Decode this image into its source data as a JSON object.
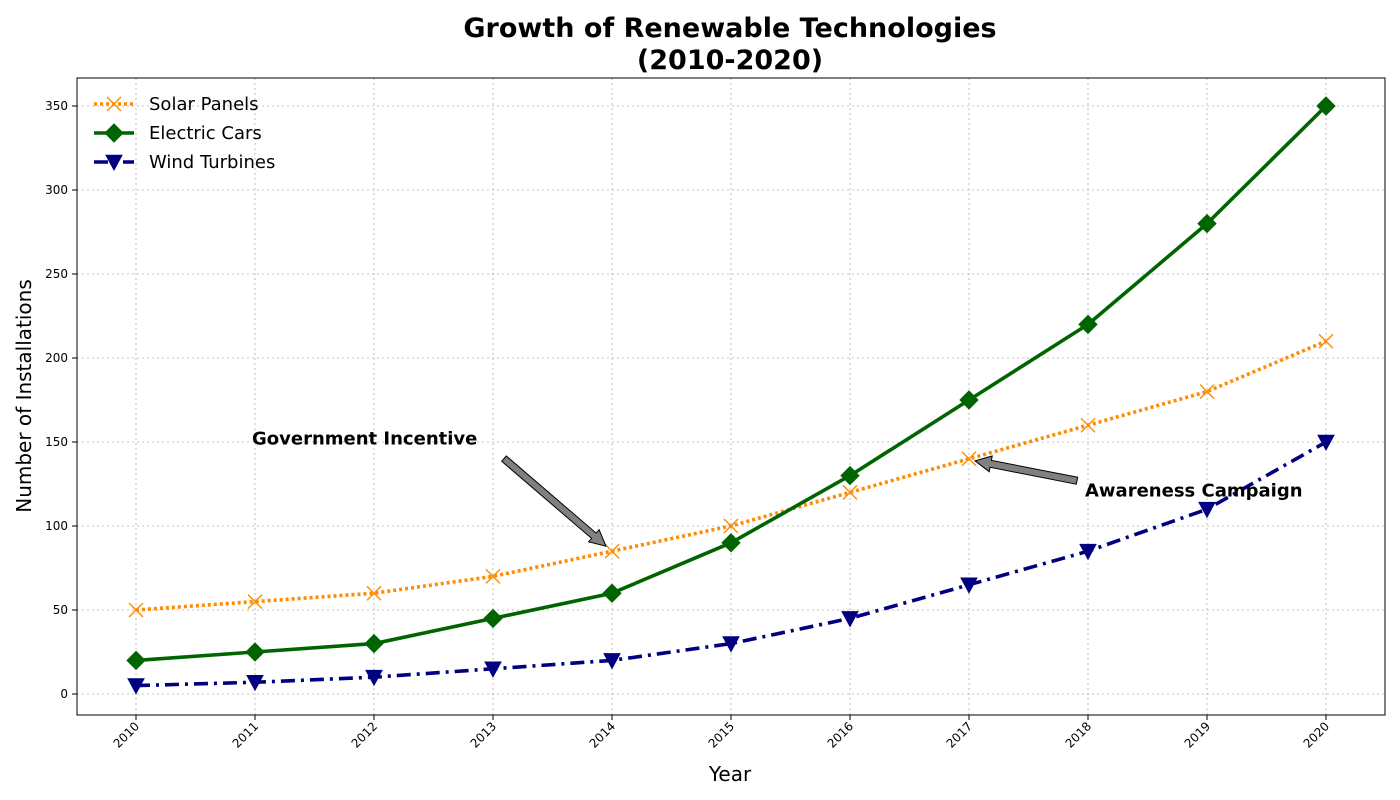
{
  "chart_data": {
    "type": "line",
    "title_lines": [
      "Growth of Renewable Technologies",
      "(2010-2020)"
    ],
    "xlabel": "Year",
    "ylabel": "Number of Installations",
    "x": [
      "2010",
      "2011",
      "2012",
      "2013",
      "2014",
      "2015",
      "2016",
      "2017",
      "2018",
      "2019",
      "2020"
    ],
    "ylim": [
      -12,
      367
    ],
    "yticks": [
      0,
      50,
      100,
      150,
      200,
      250,
      300,
      350
    ],
    "grid": true,
    "legend_position": "top-left",
    "series": [
      {
        "name": "Solar Panels",
        "values": [
          50,
          55,
          60,
          70,
          85,
          100,
          120,
          140,
          160,
          180,
          210
        ],
        "color": "#ff8c00",
        "line_style": "dotted",
        "marker": "x"
      },
      {
        "name": "Electric Cars",
        "values": [
          20,
          25,
          30,
          45,
          60,
          90,
          130,
          175,
          220,
          280,
          350
        ],
        "color": "#006400",
        "line_style": "solid",
        "marker": "diamond"
      },
      {
        "name": "Wind Turbines",
        "values": [
          5,
          7,
          10,
          15,
          20,
          30,
          45,
          65,
          85,
          110,
          150
        ],
        "color": "#000080",
        "line_style": "dashdot",
        "marker": "triangle-down"
      }
    ],
    "annotations": [
      {
        "text": "Government Incentive",
        "text_at": [
          "2011",
          152
        ],
        "point_at": [
          "2014",
          85
        ],
        "align": "left"
      },
      {
        "text": "Awareness Campaign",
        "text_at": [
          "2018",
          121
        ],
        "point_at": [
          "2017",
          140
        ],
        "align": "left"
      }
    ]
  }
}
